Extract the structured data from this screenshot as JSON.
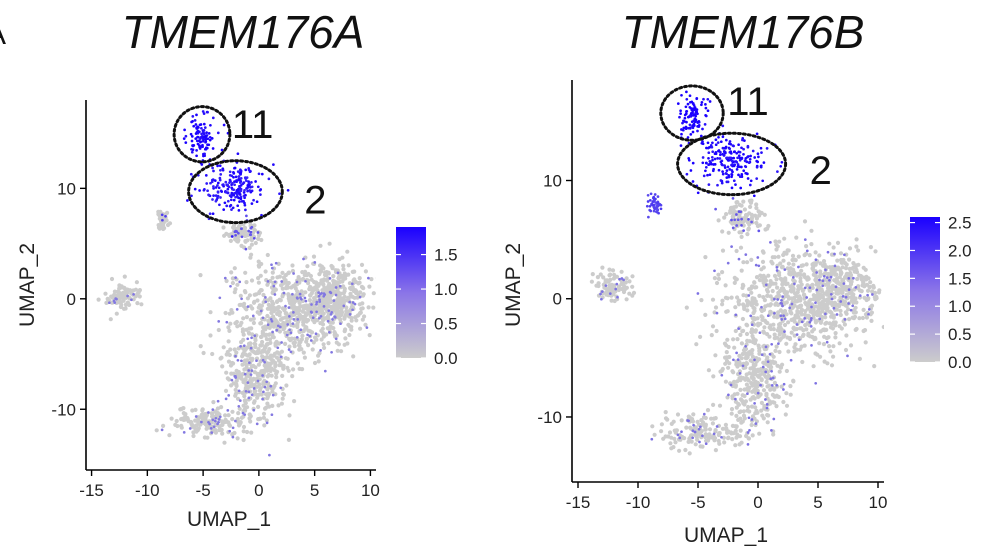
{
  "panel_letter": "A",
  "colors": {
    "low": "#cccccc",
    "high": "#1a00ff",
    "axis": "#000000"
  },
  "chart_data": [
    {
      "type": "scatter",
      "title": "TMEM176A",
      "xlabel": "UMAP_1",
      "ylabel": "UMAP_2",
      "xlim": [
        -15.5,
        10.5
      ],
      "ylim": [
        -15.5,
        18
      ],
      "x_ticks": [
        -15,
        -10,
        -5,
        0,
        5,
        10
      ],
      "y_ticks": [
        -10,
        0,
        10
      ],
      "grid": false,
      "legend": {
        "placement": "right",
        "type": "colorbar",
        "range": [
          0,
          1.9
        ],
        "ticks": [
          0.0,
          0.5,
          1.0,
          1.5
        ],
        "tick_labels": [
          "0.0",
          "0.5",
          "1.0",
          "1.5"
        ]
      },
      "annotations": [
        {
          "label": "11",
          "cluster": 11,
          "center": [
            -5.1,
            14.9
          ],
          "radii": [
            2.5,
            2.5
          ]
        },
        {
          "label": "2",
          "cluster": 2,
          "center": [
            -2.1,
            9.7
          ],
          "radii": [
            4.2,
            2.8
          ]
        }
      ],
      "clusters": [
        {
          "id": 11,
          "center": [
            -5.1,
            14.6
          ],
          "spread": [
            1.0,
            1.7
          ],
          "expression": 1.6
        },
        {
          "id": 2,
          "center": [
            -2.3,
            10.0
          ],
          "spread": [
            2.6,
            1.7
          ],
          "expression": 1.4
        },
        {
          "id": "bridge",
          "center": [
            -1.4,
            6.0
          ],
          "spread": [
            1.4,
            1.1
          ],
          "expression": 0.6
        },
        {
          "id": "main-upper",
          "center": [
            3.2,
            -1.0
          ],
          "spread": [
            4.8,
            3.6
          ],
          "expression": 0.15
        },
        {
          "id": "main-right",
          "center": [
            7.0,
            0.2
          ],
          "spread": [
            2.4,
            2.4
          ],
          "expression": 0.15
        },
        {
          "id": "main-lower",
          "center": [
            -0.3,
            -7.0
          ],
          "spread": [
            2.3,
            3.5
          ],
          "expression": 0.15
        },
        {
          "id": "tail",
          "center": [
            -4.5,
            -11.2
          ],
          "spread": [
            3.0,
            1.1
          ],
          "expression": 0.15
        },
        {
          "id": "left-island",
          "center": [
            -12.2,
            0.2
          ],
          "spread": [
            1.3,
            1.0
          ],
          "expression": 0.15
        },
        {
          "id": "small-streak",
          "center": [
            -8.6,
            7.2
          ],
          "spread": [
            0.4,
            0.7
          ],
          "expression": 0.9
        }
      ]
    },
    {
      "type": "scatter",
      "title": "TMEM176B",
      "xlabel": "UMAP_1",
      "ylabel": "UMAP_2",
      "xlim": [
        -15.5,
        10.5
      ],
      "ylim": [
        -15.5,
        18.5
      ],
      "x_ticks": [
        -15,
        -10,
        -5,
        0,
        5,
        10
      ],
      "y_ticks": [
        -10,
        0,
        10
      ],
      "grid": false,
      "legend": {
        "placement": "right",
        "type": "colorbar",
        "range": [
          0,
          2.6
        ],
        "ticks": [
          0.0,
          0.5,
          1.0,
          1.5,
          2.0,
          2.5
        ],
        "tick_labels": [
          "0.0",
          "0.5",
          "1.0",
          "1.5",
          "2.0",
          "2.5"
        ]
      },
      "annotations": [
        {
          "label": "11",
          "cluster": 11,
          "center": [
            -5.5,
            15.7
          ],
          "radii": [
            2.6,
            2.3
          ]
        },
        {
          "label": "2",
          "cluster": 2,
          "center": [
            -2.2,
            11.4
          ],
          "radii": [
            4.5,
            2.6
          ]
        }
      ],
      "clusters": [
        {
          "id": 11,
          "center": [
            -5.4,
            15.3
          ],
          "spread": [
            1.0,
            1.6
          ],
          "expression": 2.3
        },
        {
          "id": 2,
          "center": [
            -2.4,
            11.6
          ],
          "spread": [
            2.7,
            1.7
          ],
          "expression": 2.1
        },
        {
          "id": "bridge",
          "center": [
            -1.4,
            7.0
          ],
          "spread": [
            1.4,
            1.2
          ],
          "expression": 0.8
        },
        {
          "id": "main-upper",
          "center": [
            3.2,
            -0.2
          ],
          "spread": [
            4.8,
            3.7
          ],
          "expression": 0.3
        },
        {
          "id": "main-right",
          "center": [
            7.0,
            1.0
          ],
          "spread": [
            2.4,
            2.4
          ],
          "expression": 0.3
        },
        {
          "id": "main-lower",
          "center": [
            -0.3,
            -6.6
          ],
          "spread": [
            2.3,
            3.6
          ],
          "expression": 0.3
        },
        {
          "id": "tail",
          "center": [
            -4.5,
            -11.2
          ],
          "spread": [
            3.0,
            1.1
          ],
          "expression": 0.3
        },
        {
          "id": "left-island",
          "center": [
            -12.2,
            1.0
          ],
          "spread": [
            1.3,
            1.0
          ],
          "expression": 0.3
        },
        {
          "id": "small-streak",
          "center": [
            -8.6,
            8.0
          ],
          "spread": [
            0.4,
            0.7
          ],
          "expression": 1.1
        }
      ]
    }
  ]
}
